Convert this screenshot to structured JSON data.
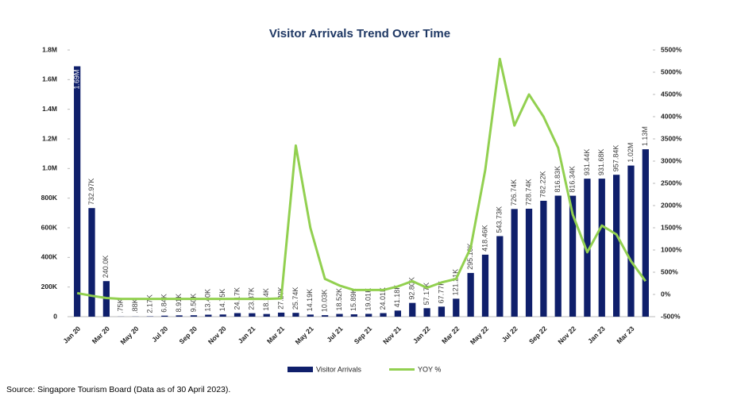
{
  "chart_data": {
    "type": "bar",
    "title": "Visitor Arrivals Trend Over Time",
    "categories": [
      "Jan 20",
      null,
      "Mar 20",
      null,
      "May 20",
      null,
      "Jul 20",
      null,
      "Sep 20",
      null,
      "Nov 20",
      null,
      "Jan 21",
      null,
      "Mar 21",
      null,
      "May 21",
      null,
      "Jul 21",
      null,
      "Sep 21",
      null,
      "Nov 21",
      null,
      "Jan 22",
      null,
      "Mar 22",
      null,
      "May 22",
      null,
      "Jul 22",
      null,
      "Sep 22",
      null,
      "Nov 22",
      null,
      "Jan 23",
      null,
      "Mar 23",
      null
    ],
    "series": [
      {
        "name": "Visitor Arrivals",
        "type": "bar",
        "color": "#0f1f6b",
        "values": [
          1690000,
          732970,
          240000,
          750,
          880,
          2170,
          6840,
          8910,
          9500,
          13400,
          14750,
          24170,
          23370,
          18140,
          27200,
          25740,
          14190,
          10030,
          18520,
          15890,
          19010,
          24010,
          41180,
          92800,
          57170,
          67770,
          121210,
          295100,
          418460,
          543730,
          726740,
          728740,
          782220,
          816830,
          816340,
          931440,
          931680,
          957840,
          1020000,
          1130000
        ],
        "value_labels": [
          "1.69M",
          "732.97K",
          "240.0K",
          ".75K",
          ".88K",
          "2.17K",
          "6.84K",
          "8.91K",
          "9.50K",
          "13.40K",
          "14.75K",
          "24.17K",
          "23.37K",
          "18.14K",
          "27.20K",
          "25.74K",
          "14.19K",
          "10.03K",
          "18.52K",
          "15.89K",
          "19.01K",
          "24.01K",
          "41.18K",
          "92.80K",
          "57.17K",
          "67.77K",
          "121.21K",
          "295.10K",
          "418.46K",
          "543.73K",
          "726.74K",
          "728.74K",
          "782.22K",
          "816.83K",
          "816.34K",
          "931.44K",
          "931.68K",
          "957.84K",
          "1.02M",
          "1.13M"
        ]
      },
      {
        "name": "YOY %",
        "type": "line",
        "color": "#92d050",
        "axis": "y2",
        "values": [
          30,
          -30,
          -80,
          -100,
          -100,
          -100,
          -100,
          -100,
          -100,
          -100,
          -100,
          -100,
          -100,
          -100,
          -90,
          3350,
          1500,
          350,
          200,
          100,
          100,
          100,
          180,
          300,
          150,
          270,
          350,
          1050,
          2800,
          5300,
          3800,
          4500,
          4000,
          3300,
          1800,
          950,
          1550,
          1350,
          750,
          300
        ]
      }
    ],
    "ylim": [
      0,
      1800000
    ],
    "yticks": [
      0,
      {
        "value": 200000,
        "label": "200K"
      },
      {
        "value": 400000,
        "label": "400K"
      },
      {
        "value": 600000,
        "label": "600K"
      },
      {
        "value": 800000,
        "label": "800K"
      },
      {
        "value": 1000000,
        "label": "1.0M"
      },
      {
        "value": 1200000,
        "label": "1.2M"
      },
      {
        "value": 1400000,
        "label": "1.4M"
      },
      {
        "value": 1600000,
        "label": "1.6M"
      },
      {
        "value": 1800000,
        "label": "1.8M"
      }
    ],
    "y2lim": [
      -500,
      5500
    ],
    "y2ticks": [
      {
        "value": -500,
        "label": "-500%"
      },
      {
        "value": 0,
        "label": "0%"
      },
      {
        "value": 500,
        "label": "500%"
      },
      {
        "value": 1000,
        "label": "1000%"
      },
      {
        "value": 1500,
        "label": "1500%"
      },
      {
        "value": 2000,
        "label": "2000%"
      },
      {
        "value": 2500,
        "label": "2500%"
      },
      {
        "value": 3000,
        "label": "3000%"
      },
      {
        "value": 3500,
        "label": "3500%"
      },
      {
        "value": 4000,
        "label": "4000%"
      },
      {
        "value": 4500,
        "label": "4500%"
      },
      {
        "value": 5000,
        "label": "5000%"
      },
      {
        "value": 5500,
        "label": "5500%"
      }
    ],
    "legend": "bottom",
    "source": "Source: Singapore Tourism Board (Data as of 30 April 2023)."
  }
}
